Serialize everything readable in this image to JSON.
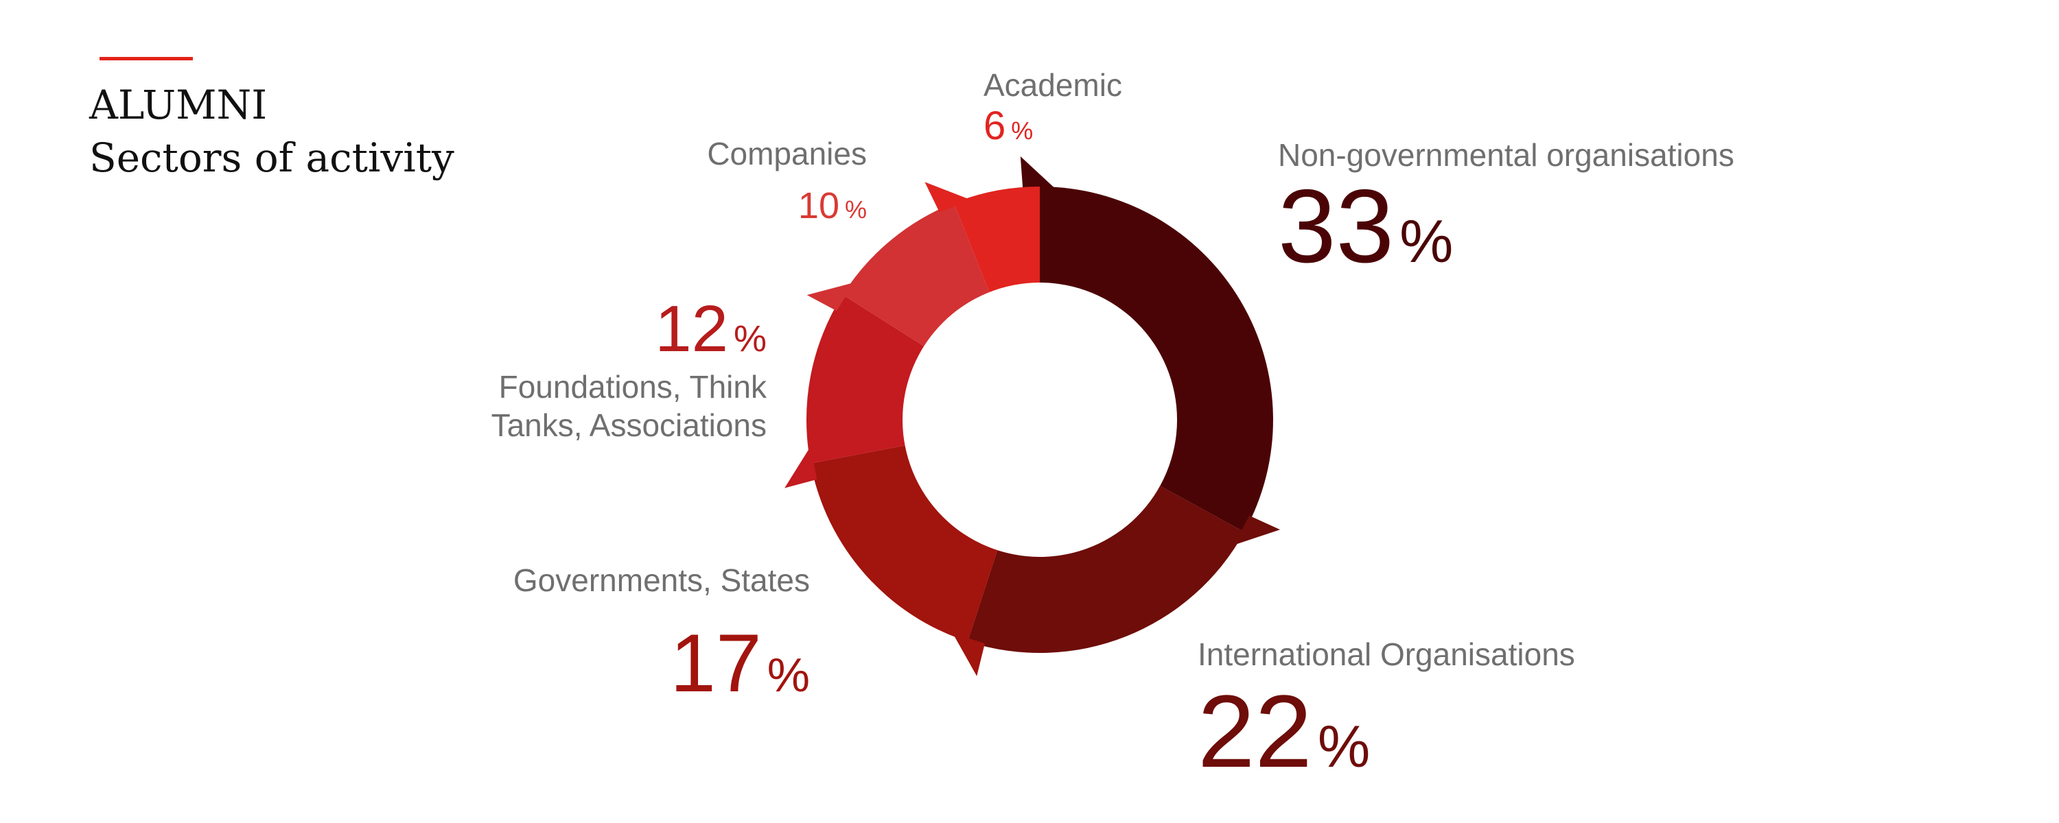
{
  "header": {
    "title_line1": "ALUMNI",
    "title_line2": "Sectors of activity",
    "accent_color": "#e2231a"
  },
  "chart_data": {
    "type": "pie",
    "variant": "donut",
    "start_angle_deg": 0,
    "direction": "clockwise",
    "percent_symbol": "%",
    "slices": [
      {
        "label": [
          "Non-governmental organisations"
        ],
        "value": 33,
        "color": "#4b0405"
      },
      {
        "label": [
          "International Organisations"
        ],
        "value": 22,
        "color": "#6e0d0a"
      },
      {
        "label": [
          "Governments, States"
        ],
        "value": 17,
        "color": "#a2140e"
      },
      {
        "label": [
          "Foundations, Think",
          "Tanks, Associations"
        ],
        "value": 12,
        "color": "#c31b1f"
      },
      {
        "label": [
          "Companies"
        ],
        "value": 10,
        "color": "#d23233"
      },
      {
        "label": [
          "Academic"
        ],
        "value": 6,
        "color": "#e12420"
      }
    ]
  }
}
